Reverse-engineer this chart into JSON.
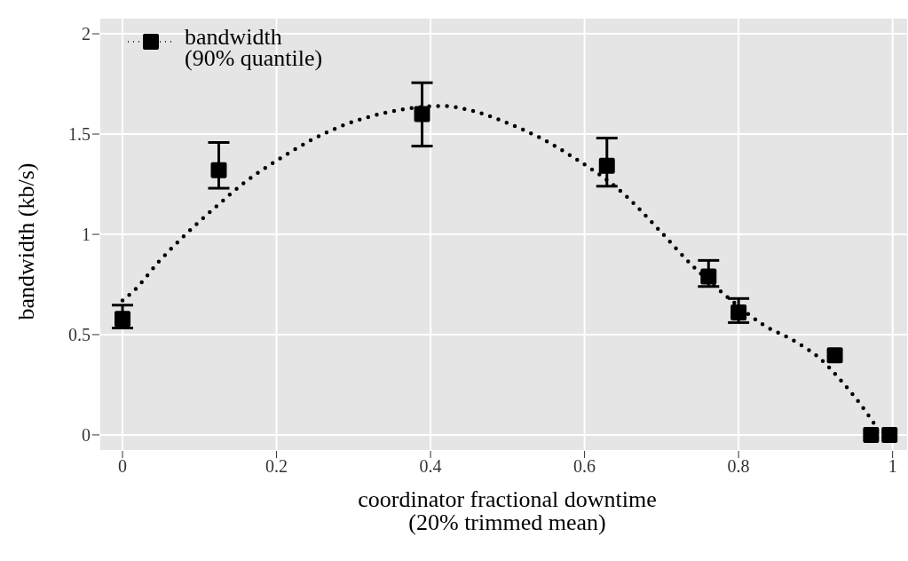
{
  "chart_data": {
    "type": "scatter",
    "xlabel": "coordinator fractional downtime\n(20% trimmed mean)",
    "ylabel": "bandwidth (kb/s)",
    "xlim": [
      -0.03,
      1.02
    ],
    "xticks": [
      0,
      0.2,
      0.4,
      0.6,
      0.8,
      1
    ],
    "ylim": [
      -0.08,
      2.08
    ],
    "yticks": [
      0,
      0.5,
      1,
      1.5,
      2
    ],
    "grid": true,
    "legend": "top left",
    "series": [
      {
        "name": "bandwidth\n(90% quantile)",
        "marker": "square",
        "color": "#000000",
        "x": [
          0,
          0.125,
          0.389,
          0.629,
          0.761,
          0.8,
          0.925,
          0.972,
          0.996
        ],
        "values": [
          0.578,
          1.32,
          1.6,
          1.342,
          0.79,
          0.61,
          0.397,
          0,
          0
        ],
        "errors": [
          [
            0.533,
            0.647
          ],
          [
            1.23,
            1.458
          ],
          [
            1.44,
            1.756
          ],
          [
            1.24,
            1.48
          ],
          [
            0.74,
            0.87
          ],
          [
            0.56,
            0.68
          ],
          null,
          null,
          null
        ]
      },
      {
        "type": "line",
        "line_style": "dotted",
        "color": "#000000",
        "x": [
          0,
          0.015,
          0.047,
          0.082,
          0.12,
          0.159,
          0.202,
          0.245,
          0.291,
          0.34,
          0.415,
          0.46,
          0.503,
          0.545,
          0.583,
          0.652,
          0.696,
          0.739,
          0.786,
          0.83,
          0.877,
          0.906,
          0.932,
          0.957,
          0.98
        ],
        "values": [
          0.67,
          0.72,
          0.863,
          1.0,
          1.133,
          1.26,
          1.372,
          1.47,
          1.55,
          1.605,
          1.64,
          1.61,
          1.55,
          1.476,
          1.39,
          1.198,
          1.025,
          0.848,
          0.686,
          0.554,
          0.458,
          0.38,
          0.275,
          0.159,
          0.034
        ]
      }
    ]
  }
}
